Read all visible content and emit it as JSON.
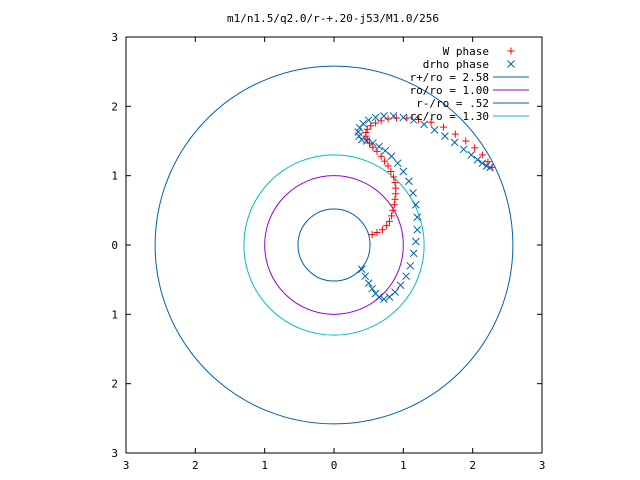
{
  "chart_data": {
    "type": "scatter",
    "title": "m1/n1.5/q2.0/r-+.20-j53/M1.0/256",
    "xlabel": "",
    "ylabel": "",
    "xlim": [
      -3,
      3
    ],
    "ylim": [
      -3,
      3
    ],
    "x_tick_labels": [
      "3",
      "2",
      "1",
      "0",
      "1",
      "2",
      "3"
    ],
    "y_tick_labels": [
      "3",
      "2",
      "1",
      "0",
      "1",
      "2",
      "3"
    ],
    "grid": false,
    "legend_position": "top-right",
    "series": [
      {
        "name": "W phase",
        "kind": "points",
        "marker": "+",
        "color": "#ff0000",
        "x": [
          0.55,
          0.62,
          0.7,
          0.76,
          0.8,
          0.83,
          0.85,
          0.87,
          0.88,
          0.89,
          0.89,
          0.88,
          0.86,
          0.82,
          0.78,
          0.73,
          0.68,
          0.62,
          0.56,
          0.51,
          0.48,
          0.46,
          0.46,
          0.48,
          0.53,
          0.6,
          0.68,
          0.78,
          0.9,
          1.05,
          1.22,
          1.4,
          1.58,
          1.75,
          1.9,
          2.03,
          2.14,
          2.22,
          2.28
        ],
        "y": [
          0.15,
          0.18,
          0.22,
          0.28,
          0.34,
          0.42,
          0.5,
          0.58,
          0.66,
          0.74,
          0.82,
          0.9,
          0.98,
          1.06,
          1.14,
          1.21,
          1.28,
          1.35,
          1.41,
          1.47,
          1.52,
          1.57,
          1.62,
          1.67,
          1.72,
          1.76,
          1.79,
          1.82,
          1.83,
          1.83,
          1.81,
          1.77,
          1.7,
          1.6,
          1.5,
          1.4,
          1.3,
          1.2,
          1.12
        ]
      },
      {
        "name": "drho phase",
        "kind": "points",
        "marker": "x",
        "color": "#0060ad",
        "x": [
          0.4,
          0.45,
          0.5,
          0.55,
          0.6,
          0.65,
          0.72,
          0.8,
          0.88,
          0.96,
          1.04,
          1.1,
          1.15,
          1.18,
          1.2,
          1.2,
          1.18,
          1.14,
          1.08,
          1.0,
          0.92,
          0.83,
          0.74,
          0.65,
          0.56,
          0.47,
          0.4,
          0.36,
          0.35,
          0.37,
          0.42,
          0.5,
          0.6,
          0.72,
          0.86,
          1.0,
          1.15,
          1.3,
          1.45,
          1.6,
          1.74,
          1.87,
          1.98,
          2.07,
          2.14,
          2.2,
          2.25
        ],
        "y": [
          -0.35,
          -0.45,
          -0.55,
          -0.63,
          -0.7,
          -0.75,
          -0.78,
          -0.75,
          -0.68,
          -0.58,
          -0.45,
          -0.3,
          -0.12,
          0.05,
          0.22,
          0.4,
          0.58,
          0.75,
          0.92,
          1.06,
          1.18,
          1.28,
          1.36,
          1.42,
          1.47,
          1.5,
          1.52,
          1.57,
          1.63,
          1.69,
          1.75,
          1.8,
          1.84,
          1.86,
          1.86,
          1.84,
          1.8,
          1.74,
          1.66,
          1.57,
          1.48,
          1.38,
          1.3,
          1.23,
          1.18,
          1.14,
          1.12
        ]
      },
      {
        "name": "r+/ro = 2.58",
        "kind": "circle",
        "radius": 2.58,
        "color": "#0060ad"
      },
      {
        "name": "ro/ro = 1.00",
        "kind": "circle",
        "radius": 1.0,
        "color": "#9400d3"
      },
      {
        "name": "r-/ro = .52",
        "kind": "circle",
        "radius": 0.52,
        "color": "#0060ad"
      },
      {
        "name": "rc/ro = 1.30",
        "kind": "circle",
        "radius": 1.3,
        "color": "#00c0c0"
      }
    ]
  }
}
